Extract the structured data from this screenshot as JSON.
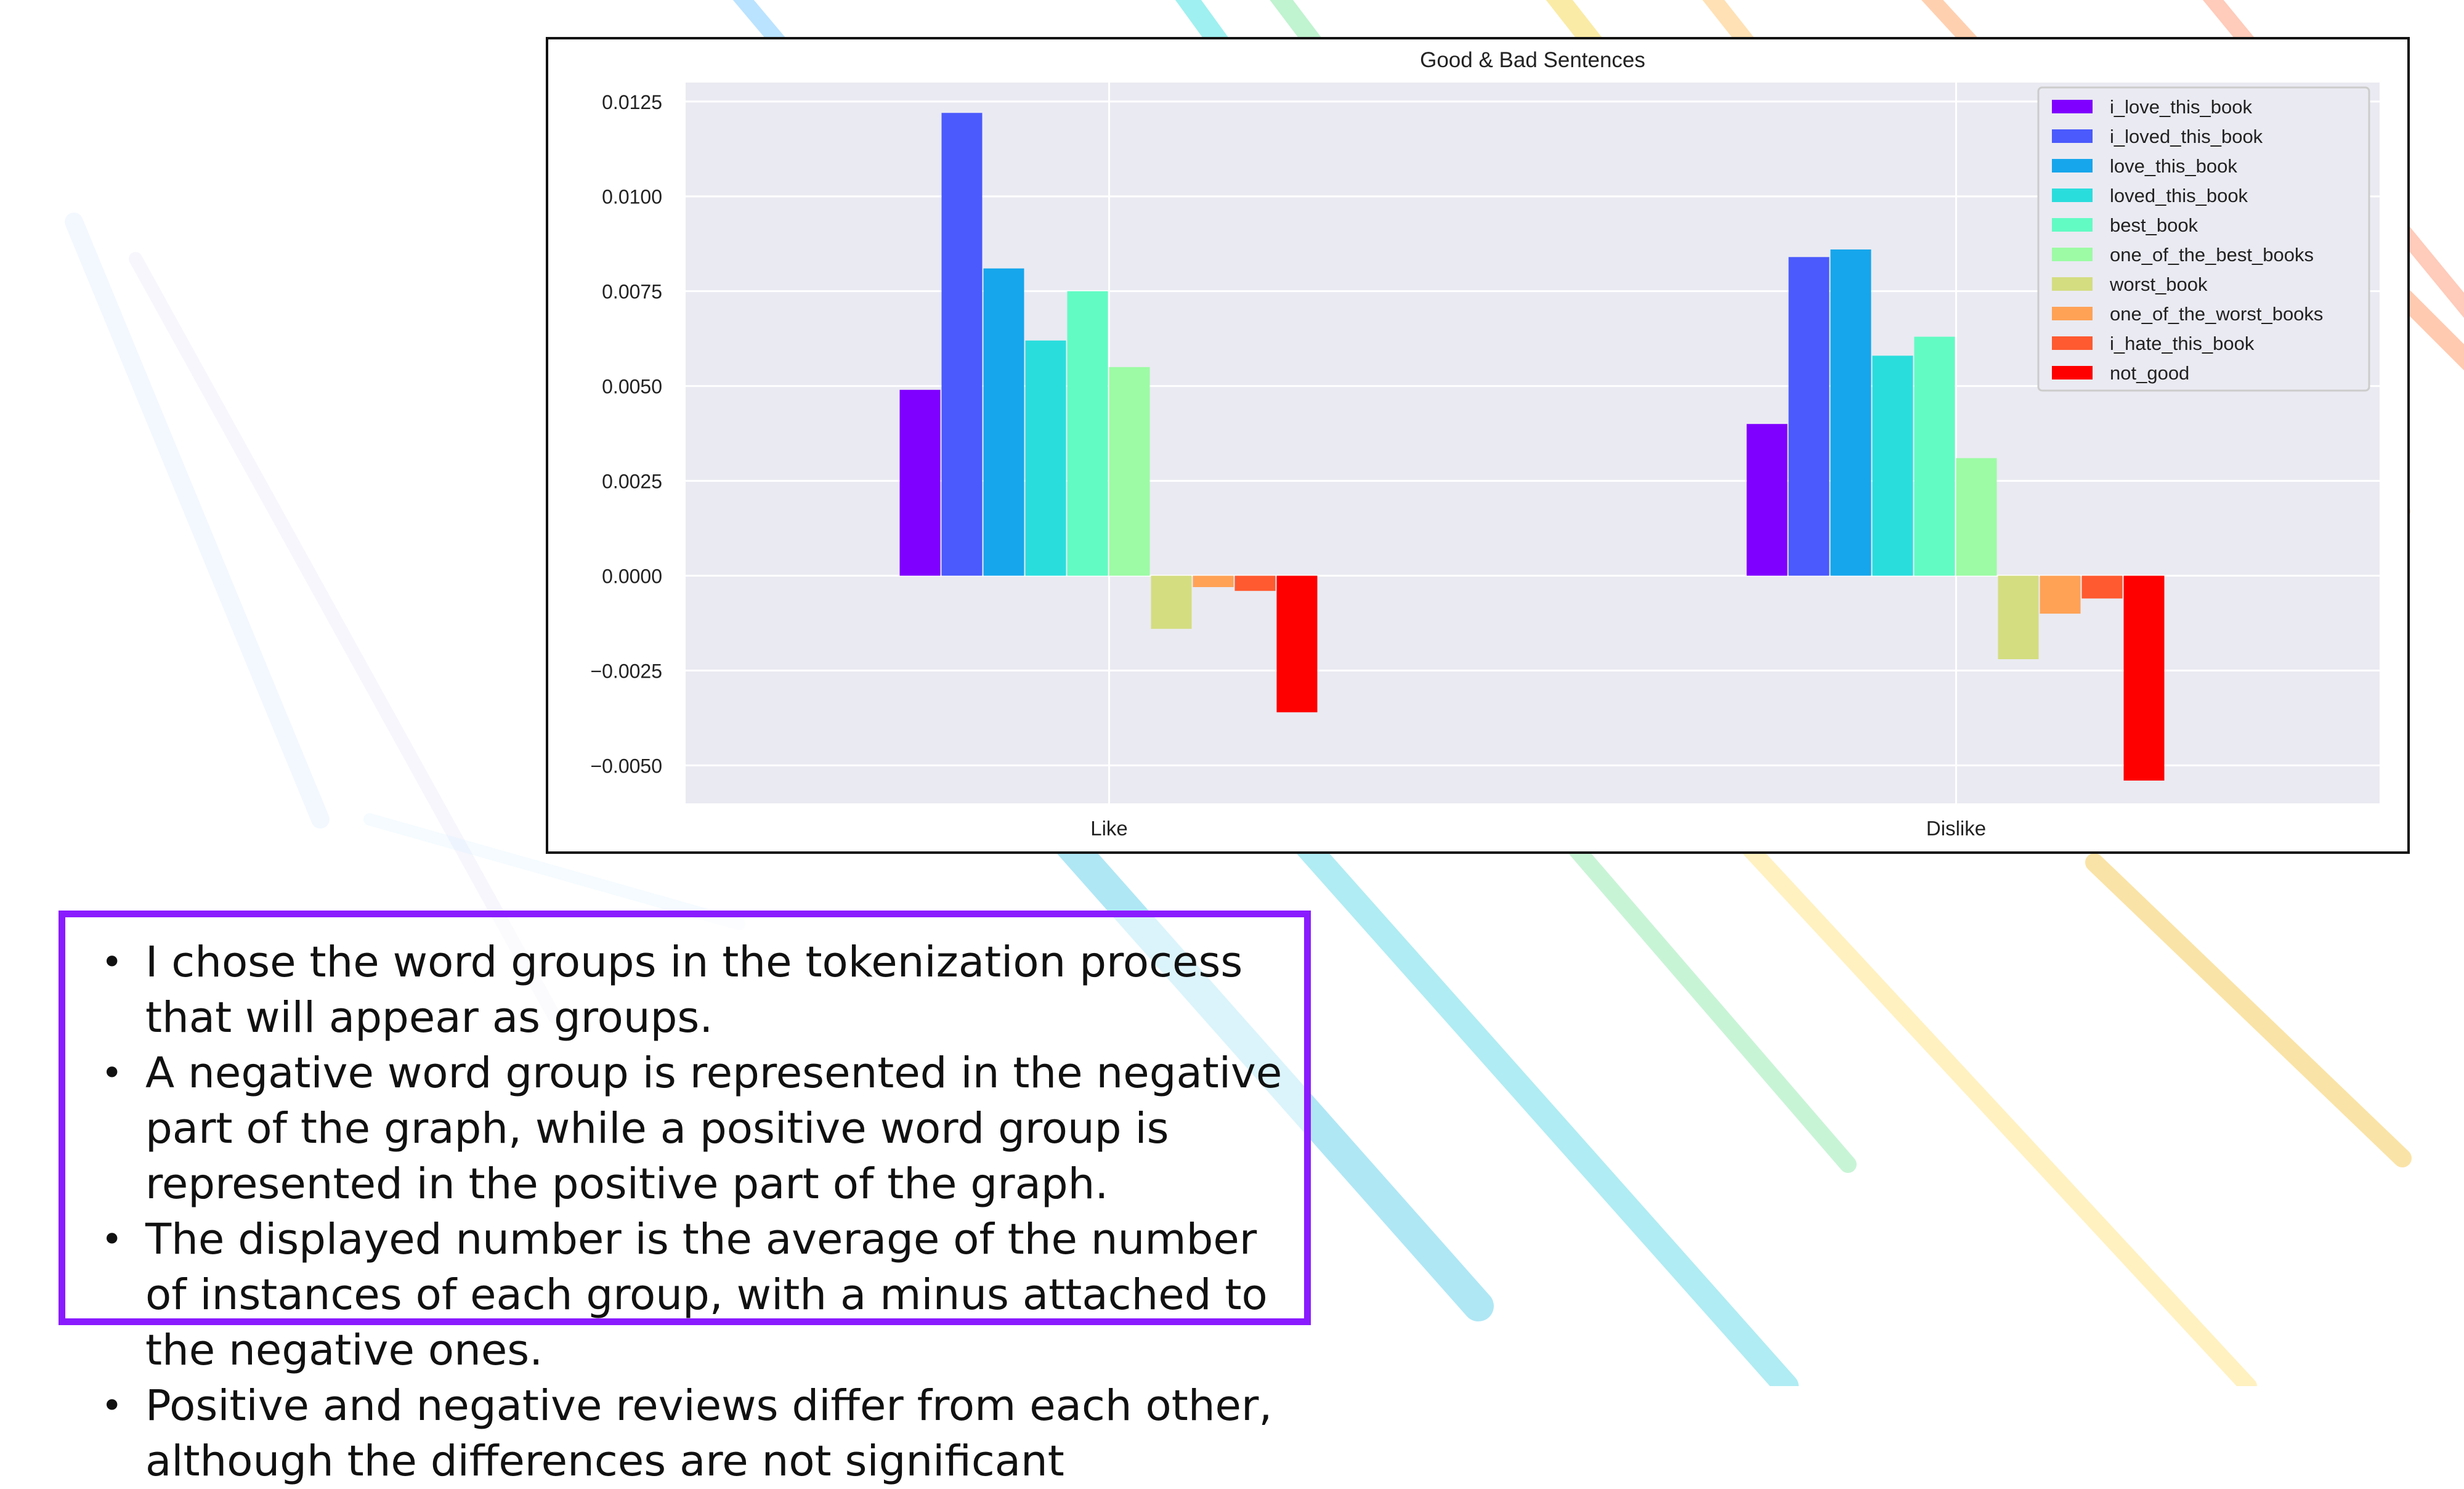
{
  "slide": {
    "colors": {
      "accent_border": "#8a1bff",
      "text": "#111111"
    },
    "bullets": [
      "I chose the word groups in the tokenization process that will appear as groups.",
      "A negative word group is represented in the negative part of the graph, while a positive word group is represented in the positive part of the graph.",
      "The displayed number is the average of the number of instances of each group, with a minus attached to the negative ones.",
      "Positive and negative reviews differ from each other, although the differences are not significant"
    ]
  },
  "chart_data": {
    "type": "bar",
    "title": "Good & Bad Sentences",
    "xlabel": "",
    "ylabel": "",
    "categories": [
      "Like",
      "Dislike"
    ],
    "ylim": [
      -0.006,
      0.013
    ],
    "yticks": [
      -0.005,
      -0.0025,
      0.0,
      0.0025,
      0.005,
      0.0075,
      0.01,
      0.0125
    ],
    "ytick_labels": [
      "−0.0050",
      "−0.0025",
      "0.0000",
      "0.0025",
      "0.0050",
      "0.0075",
      "0.0100",
      "0.0125"
    ],
    "grid": true,
    "legend_position": "top-right",
    "series": [
      {
        "name": "i_love_this_book",
        "color": "#8000ff",
        "values": [
          0.0049,
          0.004
        ]
      },
      {
        "name": "i_loved_this_book",
        "color": "#4a5afc",
        "values": [
          0.0122,
          0.0084
        ]
      },
      {
        "name": "love_this_book",
        "color": "#16a6ec",
        "values": [
          0.0081,
          0.0086
        ]
      },
      {
        "name": "loved_this_book",
        "color": "#2adddd",
        "values": [
          0.0062,
          0.0058
        ]
      },
      {
        "name": "best_book",
        "color": "#62fbc4",
        "values": [
          0.0075,
          0.0063
        ]
      },
      {
        "name": "one_of_the_best_books",
        "color": "#9cfba4",
        "values": [
          0.0055,
          0.0031
        ]
      },
      {
        "name": "worst_book",
        "color": "#d4dd80",
        "values": [
          -0.0014,
          -0.0022
        ]
      },
      {
        "name": "one_of_the_worst_books",
        "color": "#ffa256",
        "values": [
          -0.0003,
          -0.001
        ]
      },
      {
        "name": "i_hate_this_book",
        "color": "#ff5a30",
        "values": [
          -0.0004,
          -0.0006
        ]
      },
      {
        "name": "not_good",
        "color": "#ff0000",
        "values": [
          -0.0036,
          -0.0054
        ]
      }
    ]
  }
}
